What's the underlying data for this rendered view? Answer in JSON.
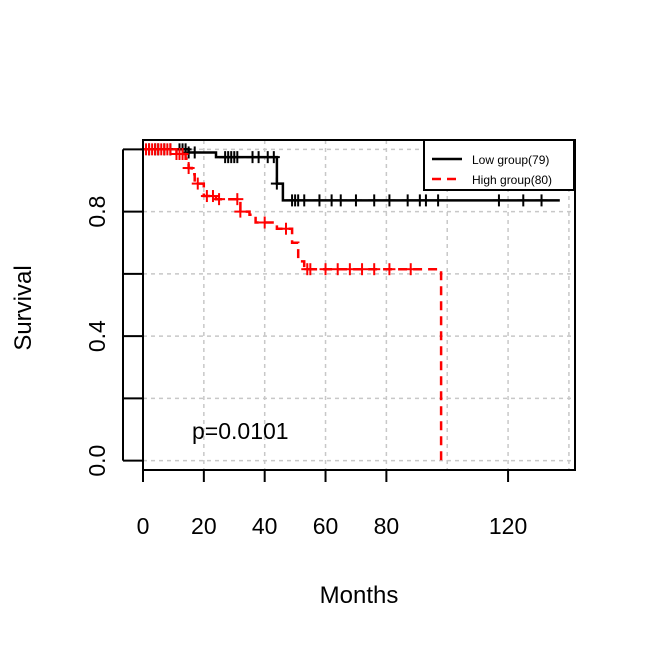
{
  "chart_data": {
    "type": "line",
    "xlabel": "Months",
    "ylabel": "Survival",
    "xlim": [
      0,
      142
    ],
    "ylim": [
      -0.03,
      1.03
    ],
    "xticks": [
      0,
      20,
      40,
      60,
      80,
      120
    ],
    "yticks_labeled": [
      0.0,
      0.4,
      0.8
    ],
    "yticks_all": [
      0.0,
      0.2,
      0.4,
      0.6,
      0.8,
      1.0
    ],
    "grid_x": [
      0,
      20,
      40,
      60,
      80,
      100,
      120,
      140
    ],
    "grid_y": [
      0.0,
      0.2,
      0.4,
      0.6,
      0.8,
      1.0
    ],
    "grid": true,
    "legend_position": "top-right",
    "annotation": "p=0.0101",
    "series": [
      {
        "name": "Low group(79)",
        "color": "#000000",
        "dash": "solid",
        "steps": [
          [
            0,
            1.0
          ],
          [
            15,
            1.0
          ],
          [
            15,
            0.99
          ],
          [
            24,
            0.99
          ],
          [
            24,
            0.975
          ],
          [
            44,
            0.975
          ],
          [
            44,
            0.89
          ],
          [
            46,
            0.89
          ],
          [
            46,
            0.836
          ],
          [
            137,
            0.836
          ]
        ],
        "censored": [
          2,
          4,
          5,
          7,
          9,
          12,
          13,
          14,
          15,
          17,
          27,
          28,
          29,
          30,
          31,
          36,
          38,
          41,
          43,
          44,
          49,
          50,
          51,
          53,
          58,
          62,
          65,
          70,
          76,
          81,
          87,
          91,
          93,
          97,
          117,
          125,
          131
        ]
      },
      {
        "name": "High group(80)",
        "color": "#ff0000",
        "dash": "dashed",
        "steps": [
          [
            0,
            1.0
          ],
          [
            11,
            1.0
          ],
          [
            11,
            0.985
          ],
          [
            14,
            0.985
          ],
          [
            14,
            0.97
          ],
          [
            15,
            0.97
          ],
          [
            15,
            0.94
          ],
          [
            16,
            0.94
          ],
          [
            16,
            0.92
          ],
          [
            17,
            0.92
          ],
          [
            17,
            0.89
          ],
          [
            20,
            0.89
          ],
          [
            20,
            0.85
          ],
          [
            24,
            0.85
          ],
          [
            24,
            0.84
          ],
          [
            32,
            0.84
          ],
          [
            32,
            0.8
          ],
          [
            35,
            0.8
          ],
          [
            35,
            0.79
          ],
          [
            37,
            0.79
          ],
          [
            37,
            0.765
          ],
          [
            44,
            0.765
          ],
          [
            44,
            0.745
          ],
          [
            49,
            0.745
          ],
          [
            49,
            0.7
          ],
          [
            51,
            0.7
          ],
          [
            51,
            0.64
          ],
          [
            53,
            0.64
          ],
          [
            53,
            0.615
          ],
          [
            98,
            0.615
          ],
          [
            98,
            0.0
          ]
        ],
        "censored": [
          1,
          2,
          3,
          4,
          5,
          6,
          7,
          8,
          9,
          11,
          12,
          13,
          15,
          18,
          21,
          23,
          25,
          31,
          32,
          40,
          47,
          54,
          55,
          60,
          64,
          68,
          72,
          76,
          81,
          88
        ]
      }
    ]
  }
}
